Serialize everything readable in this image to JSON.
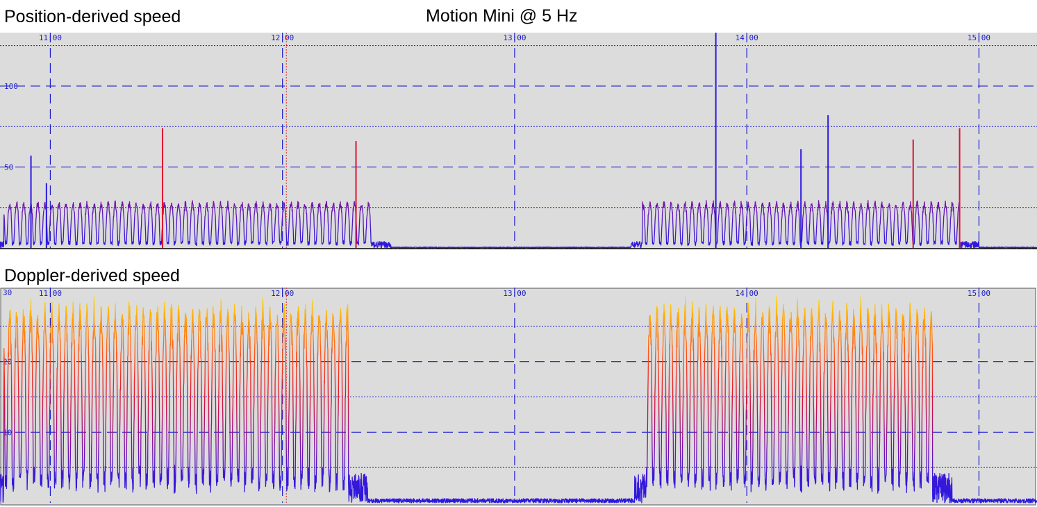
{
  "header": {
    "left_title": "Position-derived speed",
    "center_title": "Motion Mini @ 5 Hz",
    "bottom_title": "Doppler-derived speed"
  },
  "colors": {
    "plot_background": "#dcdcdc",
    "grid": "#1a1acd",
    "tick_label": "#1a1acd",
    "low_speed": "#2b18e0",
    "mid_speed": "#e01030",
    "high_speed": "#ffe800",
    "marker_line": "#d83030"
  },
  "chart_data": [
    {
      "type": "line",
      "title": "Position-derived speed",
      "x_ticks": [
        "11:00",
        "12:00",
        "13:00",
        "14:00",
        "15:00"
      ],
      "x_range": [
        "10:47",
        "15:15"
      ],
      "ylim": [
        0,
        133
      ],
      "y_ticks": [
        50,
        100
      ],
      "y_dotted_grid": [
        25,
        75,
        125
      ],
      "grid": true,
      "marker_time": "12:01",
      "active_periods": [
        [
          "10:48",
          "12:23"
        ],
        [
          "13:33",
          "14:55"
        ]
      ],
      "series": [
        {
          "typical_peak": 28,
          "spikes": [
            {
              "x": "10:55",
              "y": 57
            },
            {
              "x": "10:59",
              "y": 40
            },
            {
              "x": "11:29",
              "y": 74,
              "color": "red"
            },
            {
              "x": "12:19",
              "y": 66,
              "color": "red"
            },
            {
              "x": "13:52",
              "y": 133
            },
            {
              "x": "14:14",
              "y": 61
            },
            {
              "x": "14:21",
              "y": 82
            },
            {
              "x": "14:43",
              "y": 67,
              "color": "red"
            },
            {
              "x": "14:55",
              "y": 74,
              "color": "red"
            }
          ]
        }
      ]
    },
    {
      "type": "line",
      "title": "Doppler-derived speed",
      "x_ticks": [
        "11:00",
        "12:00",
        "13:00",
        "14:00",
        "15:00"
      ],
      "x_range": [
        "10:47",
        "15:15"
      ],
      "ylim": [
        0,
        30
      ],
      "y_ticks": [
        10,
        20,
        30
      ],
      "y_dotted_grid": [
        5,
        15,
        25
      ],
      "grid": true,
      "marker_time": "12:01",
      "active_periods": [
        [
          "10:48",
          "12:17"
        ],
        [
          "13:34",
          "14:48"
        ]
      ],
      "color_scale": {
        "min": 0,
        "max": 30
      },
      "series": [
        {
          "typical_peak": 27,
          "typical_trough": 2,
          "tail_peak": 14
        }
      ]
    }
  ]
}
